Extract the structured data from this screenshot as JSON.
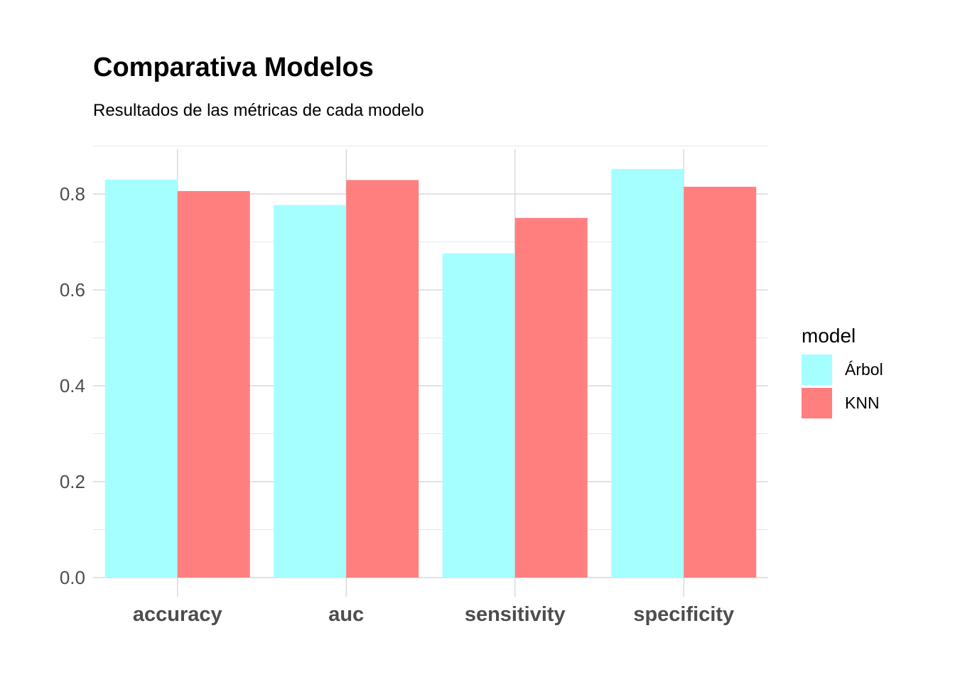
{
  "chart_data": {
    "type": "bar",
    "title": "Comparativa Modelos",
    "subtitle": "Resultados de las métricas de cada modelo",
    "xlabel": "",
    "ylabel": "",
    "categories": [
      "accuracy",
      "auc",
      "sensitivity",
      "specificity"
    ],
    "series": [
      {
        "name": "Árbol",
        "color": "#A6FFFF",
        "values": [
          0.83,
          0.777,
          0.676,
          0.852
        ]
      },
      {
        "name": "KNN",
        "color": "#FF7F7F",
        "values": [
          0.806,
          0.829,
          0.75,
          0.815
        ]
      }
    ],
    "ylim": [
      0,
      0.9
    ],
    "yticks": [
      0.0,
      0.2,
      0.4,
      0.6,
      0.8
    ],
    "ytick_labels": [
      "0.0",
      "0.2",
      "0.4",
      "0.6",
      "0.8"
    ],
    "grid": true,
    "legend": {
      "title": "model",
      "position": "right"
    }
  }
}
